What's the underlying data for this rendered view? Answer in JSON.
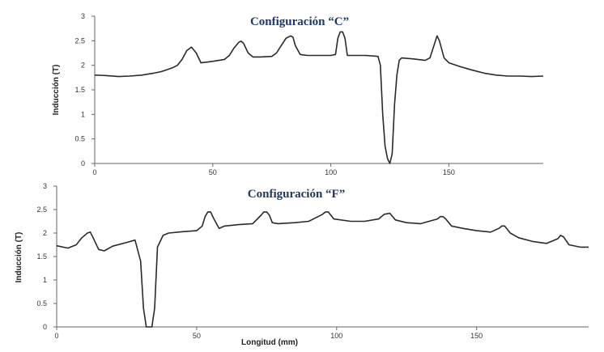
{
  "chart_data": [
    {
      "type": "line",
      "title": "Configuración “C”",
      "xlabel": "",
      "ylabel": "Inducción (T)",
      "xlim": [
        0,
        190
      ],
      "ylim": [
        0,
        3
      ],
      "xticks": [
        "0",
        "50",
        "100",
        "150"
      ],
      "yticks": [
        "0",
        "0.5",
        "1",
        "1.5",
        "2",
        "2.5",
        "3"
      ],
      "grid": false,
      "series": [
        {
          "x": [
            0,
            5,
            10,
            15,
            20,
            25,
            28,
            30,
            33,
            35,
            37,
            39,
            41,
            43,
            45,
            50,
            55,
            57,
            59,
            61,
            62,
            63,
            65,
            67,
            70,
            75,
            77,
            79,
            81,
            83,
            84,
            85,
            87,
            90,
            95,
            100,
            102,
            103,
            104,
            105,
            106,
            107,
            110,
            115,
            120,
            121,
            122,
            123,
            124,
            125,
            126,
            127,
            128,
            129,
            130,
            135,
            140,
            142,
            144,
            145,
            146,
            148,
            150,
            155,
            160,
            165,
            170,
            175,
            180,
            185,
            190
          ],
          "y": [
            1.8,
            1.79,
            1.77,
            1.78,
            1.8,
            1.84,
            1.87,
            1.9,
            1.95,
            2.0,
            2.12,
            2.3,
            2.37,
            2.25,
            2.05,
            2.08,
            2.12,
            2.2,
            2.35,
            2.47,
            2.49,
            2.45,
            2.25,
            2.17,
            2.17,
            2.18,
            2.25,
            2.4,
            2.55,
            2.6,
            2.57,
            2.4,
            2.22,
            2.2,
            2.2,
            2.2,
            2.22,
            2.55,
            2.68,
            2.68,
            2.55,
            2.2,
            2.2,
            2.2,
            2.18,
            2.0,
            1.0,
            0.35,
            0.1,
            0.0,
            0.2,
            1.2,
            1.8,
            2.1,
            2.15,
            2.13,
            2.1,
            2.15,
            2.45,
            2.6,
            2.5,
            2.15,
            2.05,
            1.97,
            1.9,
            1.84,
            1.8,
            1.78,
            1.78,
            1.77,
            1.78
          ]
        }
      ]
    },
    {
      "type": "line",
      "title": "Configuración “F”",
      "xlabel": "Longitud (mm)",
      "ylabel": "Inducción (T)",
      "xlim": [
        0,
        190
      ],
      "ylim": [
        0,
        3
      ],
      "xticks": [
        "0",
        "50",
        "100",
        "150"
      ],
      "yticks": [
        "0",
        "0.5",
        "1",
        "1.5",
        "2",
        "2.5",
        "3"
      ],
      "grid": false,
      "series": [
        {
          "x": [
            0,
            4,
            7,
            9,
            11,
            12,
            13,
            15,
            17,
            20,
            25,
            28,
            30,
            31,
            32,
            33,
            34,
            35,
            36,
            38,
            40,
            45,
            50,
            52,
            53,
            54,
            55,
            56,
            58,
            60,
            65,
            70,
            73,
            74,
            75,
            76,
            77,
            79,
            85,
            90,
            95,
            96,
            97,
            99,
            105,
            110,
            115,
            117,
            119,
            121,
            125,
            130,
            136,
            137,
            138,
            139,
            141,
            145,
            150,
            155,
            158,
            159,
            160,
            162,
            165,
            170,
            175,
            179,
            180,
            181,
            183,
            187,
            190
          ],
          "y": [
            1.73,
            1.68,
            1.75,
            1.9,
            2.0,
            2.02,
            1.9,
            1.65,
            1.62,
            1.72,
            1.8,
            1.85,
            1.4,
            0.4,
            0.0,
            0.0,
            0.0,
            0.4,
            1.7,
            1.95,
            2.0,
            2.03,
            2.05,
            2.15,
            2.35,
            2.45,
            2.45,
            2.32,
            2.1,
            2.15,
            2.18,
            2.2,
            2.38,
            2.45,
            2.45,
            2.38,
            2.22,
            2.2,
            2.22,
            2.25,
            2.4,
            2.45,
            2.45,
            2.3,
            2.25,
            2.25,
            2.3,
            2.4,
            2.42,
            2.28,
            2.22,
            2.2,
            2.3,
            2.35,
            2.35,
            2.3,
            2.15,
            2.1,
            2.05,
            2.02,
            2.1,
            2.15,
            2.15,
            2.0,
            1.9,
            1.82,
            1.78,
            1.88,
            1.95,
            1.92,
            1.75,
            1.7,
            1.7
          ]
        }
      ]
    }
  ]
}
